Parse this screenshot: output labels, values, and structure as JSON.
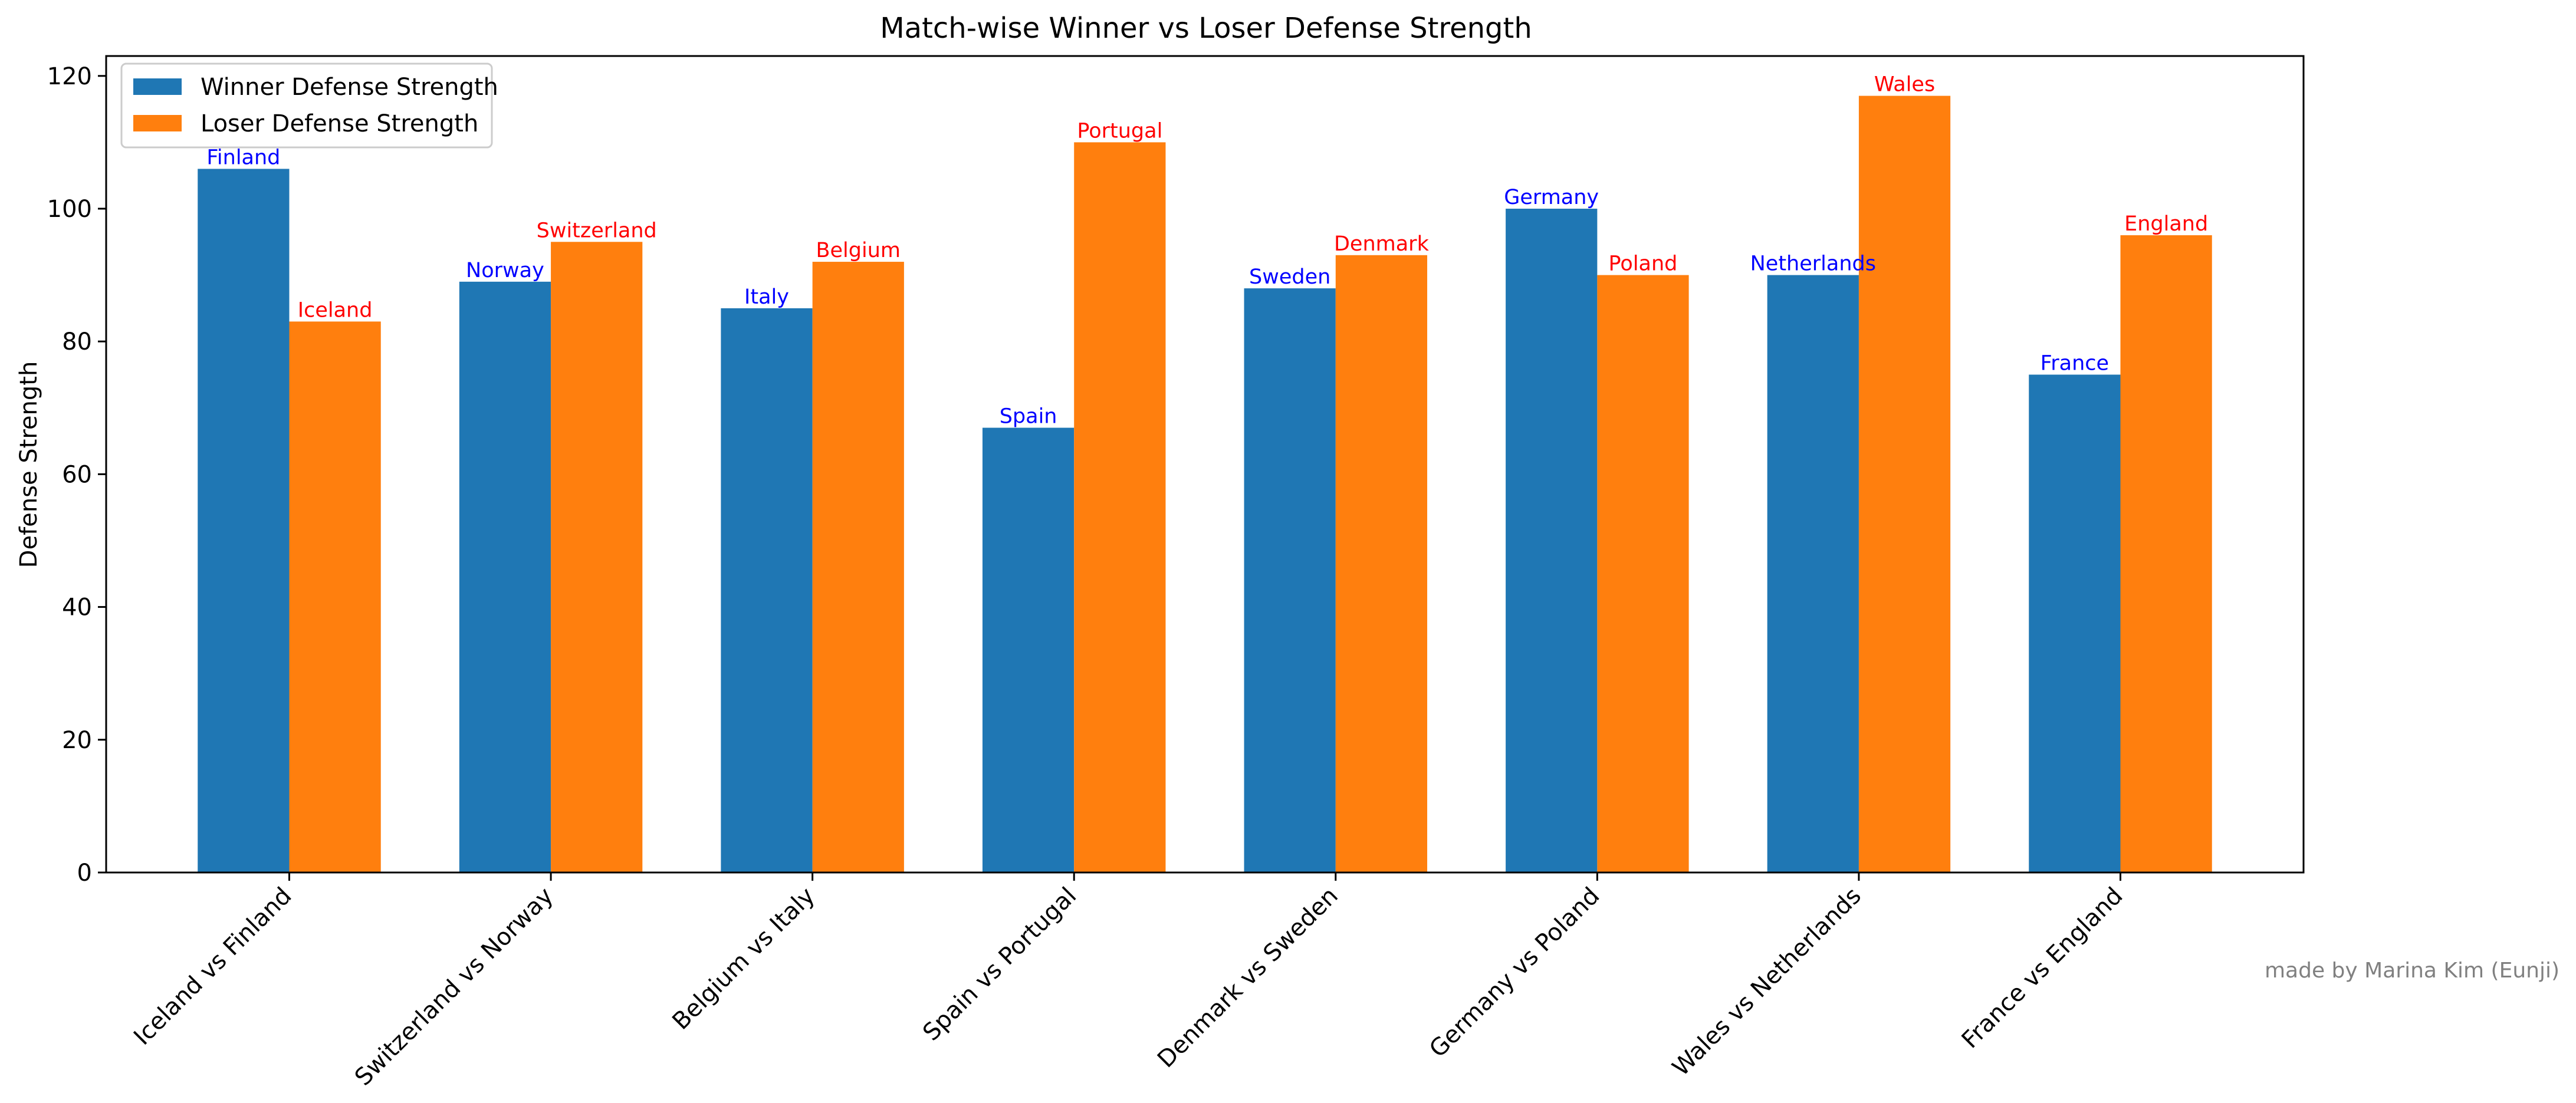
{
  "chart_data": {
    "type": "bar",
    "title": "Match-wise Winner vs Loser Defense Strength",
    "xlabel": "",
    "ylabel": "Defense Strength",
    "ylim": [
      0,
      123
    ],
    "yticks": [
      0,
      20,
      40,
      60,
      80,
      100,
      120
    ],
    "grid": false,
    "legend_position": "top-left",
    "categories": [
      "Iceland vs Finland",
      "Switzerland vs Norway",
      "Belgium vs Italy",
      "Spain vs Portugal",
      "Denmark vs Sweden",
      "Germany vs Poland",
      "Wales vs Netherlands",
      "France vs England"
    ],
    "series": [
      {
        "name": "Winner Defense Strength",
        "color": "#1f77b4",
        "label_color": "#0000ff",
        "values": [
          106,
          89,
          85,
          67,
          88,
          100,
          90,
          75
        ],
        "labels": [
          "Finland",
          "Norway",
          "Italy",
          "Spain",
          "Sweden",
          "Germany",
          "Netherlands",
          "France"
        ]
      },
      {
        "name": "Loser Defense Strength",
        "color": "#ff7f0e",
        "label_color": "#ff0000",
        "values": [
          83,
          95,
          92,
          110,
          93,
          90,
          117,
          96
        ],
        "labels": [
          "Iceland",
          "Switzerland",
          "Belgium",
          "Portugal",
          "Denmark",
          "Poland",
          "Wales",
          "England"
        ]
      }
    ],
    "annotation": "made by Marina Kim (Eunji)"
  }
}
